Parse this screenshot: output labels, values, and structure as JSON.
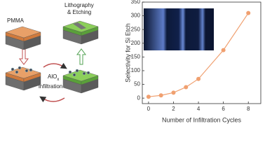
{
  "diagram": {
    "pmma": "PMMA",
    "litho": [
      "Lithography",
      "& Etching"
    ],
    "alox": {
      "base": "AlO",
      "sub": "x"
    },
    "infiltration": "infiltration"
  },
  "chart_data": {
    "type": "line",
    "x_label": "Number of Infiltration Cycles",
    "y_label": "Selectivity for Si Etch",
    "x": [
      0,
      1,
      2,
      3,
      4,
      6,
      8
    ],
    "values": [
      5,
      10,
      20,
      40,
      70,
      175,
      310
    ],
    "color": "#f0a070",
    "xlim": [
      -0.5,
      9
    ],
    "xticks": [
      0,
      2,
      4,
      6,
      8
    ],
    "ylim": [
      -20,
      350
    ],
    "yticks": [
      0,
      50,
      100,
      150,
      200,
      250,
      300,
      350
    ],
    "grid": false
  }
}
